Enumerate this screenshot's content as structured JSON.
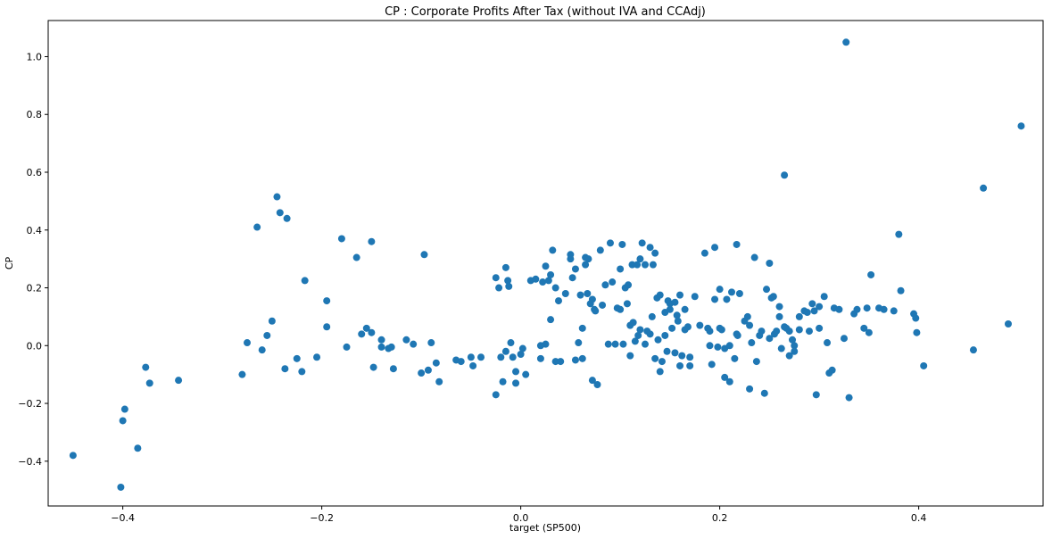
{
  "chart_data": {
    "type": "scatter",
    "title": "CP :  Corporate Profits After Tax (without IVA and CCAdj)",
    "xlabel": "target (SP500)",
    "ylabel": "CP",
    "xlim": [
      -0.475,
      0.525
    ],
    "ylim": [
      -0.555,
      1.125
    ],
    "xticks": [
      -0.4,
      -0.2,
      0.0,
      0.2,
      0.4
    ],
    "yticks": [
      -0.4,
      -0.2,
      0.0,
      0.2,
      0.4,
      0.6,
      0.8,
      1.0
    ],
    "xtick_labels": [
      "−0.4",
      "−0.2",
      "0.0",
      "0.2",
      "0.4"
    ],
    "ytick_labels": [
      "−0.4",
      "−0.2",
      "0.0",
      "0.2",
      "0.4",
      "0.6",
      "0.8",
      "1.0"
    ],
    "grid": false,
    "marker_color": "#1f77b4",
    "points": [
      [
        -0.45,
        -0.38
      ],
      [
        -0.402,
        -0.49
      ],
      [
        -0.4,
        -0.26
      ],
      [
        -0.398,
        -0.22
      ],
      [
        -0.385,
        -0.355
      ],
      [
        -0.377,
        -0.075
      ],
      [
        -0.373,
        -0.13
      ],
      [
        -0.344,
        -0.12
      ],
      [
        -0.28,
        -0.1
      ],
      [
        -0.275,
        0.01
      ],
      [
        -0.265,
        0.41
      ],
      [
        -0.26,
        -0.015
      ],
      [
        -0.255,
        0.035
      ],
      [
        -0.25,
        0.085
      ],
      [
        -0.245,
        0.515
      ],
      [
        -0.242,
        0.46
      ],
      [
        -0.237,
        -0.08
      ],
      [
        -0.235,
        0.44
      ],
      [
        -0.225,
        -0.045
      ],
      [
        -0.22,
        -0.09
      ],
      [
        -0.217,
        0.225
      ],
      [
        -0.205,
        -0.04
      ],
      [
        -0.195,
        0.065
      ],
      [
        -0.195,
        0.155
      ],
      [
        -0.18,
        0.37
      ],
      [
        -0.175,
        -0.005
      ],
      [
        -0.165,
        0.305
      ],
      [
        -0.16,
        0.04
      ],
      [
        -0.155,
        0.06
      ],
      [
        -0.15,
        0.045
      ],
      [
        -0.15,
        0.36
      ],
      [
        -0.148,
        -0.075
      ],
      [
        -0.14,
        0.02
      ],
      [
        -0.14,
        -0.005
      ],
      [
        -0.133,
        -0.01
      ],
      [
        -0.13,
        -0.005
      ],
      [
        -0.128,
        -0.08
      ],
      [
        -0.115,
        0.02
      ],
      [
        -0.108,
        0.005
      ],
      [
        -0.1,
        -0.095
      ],
      [
        -0.097,
        0.315
      ],
      [
        -0.093,
        -0.085
      ],
      [
        -0.09,
        0.01
      ],
      [
        -0.085,
        -0.06
      ],
      [
        -0.082,
        -0.125
      ],
      [
        -0.065,
        -0.05
      ],
      [
        -0.06,
        -0.055
      ],
      [
        -0.05,
        -0.04
      ],
      [
        -0.048,
        -0.07
      ],
      [
        -0.04,
        -0.04
      ],
      [
        -0.025,
        -0.17
      ],
      [
        -0.025,
        0.235
      ],
      [
        -0.022,
        0.2
      ],
      [
        -0.02,
        -0.04
      ],
      [
        -0.018,
        -0.125
      ],
      [
        -0.015,
        -0.02
      ],
      [
        -0.015,
        0.27
      ],
      [
        -0.013,
        0.225
      ],
      [
        -0.012,
        0.205
      ],
      [
        -0.01,
        0.01
      ],
      [
        -0.008,
        -0.04
      ],
      [
        -0.005,
        -0.13
      ],
      [
        -0.005,
        -0.09
      ],
      [
        0.0,
        -0.03
      ],
      [
        0.002,
        -0.01
      ],
      [
        0.005,
        -0.1
      ],
      [
        0.01,
        0.225
      ],
      [
        0.015,
        0.23
      ],
      [
        0.02,
        0.0
      ],
      [
        0.02,
        -0.045
      ],
      [
        0.022,
        0.22
      ],
      [
        0.025,
        0.275
      ],
      [
        0.025,
        0.005
      ],
      [
        0.028,
        0.225
      ],
      [
        0.03,
        0.245
      ],
      [
        0.03,
        0.09
      ],
      [
        0.032,
        0.33
      ],
      [
        0.035,
        0.2
      ],
      [
        0.035,
        -0.055
      ],
      [
        0.038,
        0.155
      ],
      [
        0.04,
        -0.055
      ],
      [
        0.045,
        0.18
      ],
      [
        0.05,
        0.3
      ],
      [
        0.05,
        0.315
      ],
      [
        0.052,
        0.235
      ],
      [
        0.055,
        -0.05
      ],
      [
        0.055,
        0.265
      ],
      [
        0.058,
        0.01
      ],
      [
        0.06,
        0.175
      ],
      [
        0.062,
        0.06
      ],
      [
        0.062,
        -0.045
      ],
      [
        0.065,
        0.28
      ],
      [
        0.065,
        0.305
      ],
      [
        0.067,
        0.18
      ],
      [
        0.068,
        0.3
      ],
      [
        0.07,
        0.145
      ],
      [
        0.072,
        0.16
      ],
      [
        0.072,
        -0.12
      ],
      [
        0.074,
        0.125
      ],
      [
        0.075,
        0.12
      ],
      [
        0.077,
        -0.135
      ],
      [
        0.08,
        0.33
      ],
      [
        0.082,
        0.14
      ],
      [
        0.085,
        0.21
      ],
      [
        0.088,
        0.005
      ],
      [
        0.09,
        0.355
      ],
      [
        0.092,
        0.22
      ],
      [
        0.095,
        0.005
      ],
      [
        0.097,
        0.13
      ],
      [
        0.1,
        0.265
      ],
      [
        0.1,
        0.125
      ],
      [
        0.102,
        0.35
      ],
      [
        0.103,
        0.005
      ],
      [
        0.105,
        0.2
      ],
      [
        0.107,
        0.145
      ],
      [
        0.108,
        0.21
      ],
      [
        0.11,
        -0.035
      ],
      [
        0.11,
        0.07
      ],
      [
        0.112,
        0.28
      ],
      [
        0.113,
        0.08
      ],
      [
        0.115,
        0.015
      ],
      [
        0.117,
        0.28
      ],
      [
        0.118,
        0.035
      ],
      [
        0.12,
        0.3
      ],
      [
        0.12,
        0.055
      ],
      [
        0.122,
        0.355
      ],
      [
        0.125,
        0.005
      ],
      [
        0.125,
        0.28
      ],
      [
        0.127,
        0.05
      ],
      [
        0.13,
        0.34
      ],
      [
        0.13,
        0.04
      ],
      [
        0.132,
        0.1
      ],
      [
        0.133,
        0.28
      ],
      [
        0.135,
        0.32
      ],
      [
        0.135,
        -0.045
      ],
      [
        0.137,
        0.165
      ],
      [
        0.138,
        0.02
      ],
      [
        0.14,
        -0.09
      ],
      [
        0.14,
        0.175
      ],
      [
        0.142,
        -0.055
      ],
      [
        0.145,
        0.115
      ],
      [
        0.145,
        0.035
      ],
      [
        0.147,
        -0.02
      ],
      [
        0.148,
        0.155
      ],
      [
        0.15,
        0.145
      ],
      [
        0.15,
        0.125
      ],
      [
        0.152,
        0.06
      ],
      [
        0.155,
        -0.025
      ],
      [
        0.155,
        0.15
      ],
      [
        0.157,
        0.105
      ],
      [
        0.158,
        0.085
      ],
      [
        0.16,
        -0.07
      ],
      [
        0.16,
        0.175
      ],
      [
        0.162,
        -0.035
      ],
      [
        0.165,
        0.125
      ],
      [
        0.165,
        0.055
      ],
      [
        0.168,
        0.065
      ],
      [
        0.17,
        -0.04
      ],
      [
        0.17,
        -0.07
      ],
      [
        0.175,
        0.17
      ],
      [
        0.18,
        0.07
      ],
      [
        0.185,
        0.32
      ],
      [
        0.188,
        0.06
      ],
      [
        0.19,
        0.05
      ],
      [
        0.19,
        0.0
      ],
      [
        0.192,
        -0.065
      ],
      [
        0.195,
        0.16
      ],
      [
        0.195,
        0.34
      ],
      [
        0.198,
        -0.005
      ],
      [
        0.2,
        0.06
      ],
      [
        0.2,
        0.195
      ],
      [
        0.202,
        0.055
      ],
      [
        0.205,
        -0.01
      ],
      [
        0.205,
        -0.11
      ],
      [
        0.207,
        0.16
      ],
      [
        0.21,
        0.0
      ],
      [
        0.21,
        -0.125
      ],
      [
        0.212,
        0.185
      ],
      [
        0.215,
        -0.045
      ],
      [
        0.217,
        0.04
      ],
      [
        0.217,
        0.35
      ],
      [
        0.218,
        0.035
      ],
      [
        0.22,
        0.18
      ],
      [
        0.225,
        0.085
      ],
      [
        0.228,
        0.1
      ],
      [
        0.23,
        0.07
      ],
      [
        0.23,
        -0.15
      ],
      [
        0.232,
        0.01
      ],
      [
        0.235,
        0.305
      ],
      [
        0.237,
        -0.055
      ],
      [
        0.24,
        0.035
      ],
      [
        0.242,
        0.05
      ],
      [
        0.245,
        -0.165
      ],
      [
        0.247,
        0.195
      ],
      [
        0.25,
        0.285
      ],
      [
        0.25,
        0.025
      ],
      [
        0.252,
        0.165
      ],
      [
        0.254,
        0.17
      ],
      [
        0.255,
        0.04
      ],
      [
        0.257,
        0.05
      ],
      [
        0.26,
        0.135
      ],
      [
        0.26,
        0.1
      ],
      [
        0.262,
        -0.01
      ],
      [
        0.265,
        0.065
      ],
      [
        0.265,
        0.59
      ],
      [
        0.267,
        0.06
      ],
      [
        0.27,
        -0.035
      ],
      [
        0.27,
        0.05
      ],
      [
        0.273,
        0.02
      ],
      [
        0.275,
        0.0
      ],
      [
        0.275,
        -0.02
      ],
      [
        0.28,
        0.1
      ],
      [
        0.28,
        0.055
      ],
      [
        0.285,
        0.12
      ],
      [
        0.288,
        0.115
      ],
      [
        0.29,
        0.05
      ],
      [
        0.293,
        0.145
      ],
      [
        0.295,
        0.12
      ],
      [
        0.297,
        -0.17
      ],
      [
        0.3,
        0.135
      ],
      [
        0.3,
        0.06
      ],
      [
        0.305,
        0.17
      ],
      [
        0.308,
        0.01
      ],
      [
        0.31,
        -0.095
      ],
      [
        0.313,
        -0.085
      ],
      [
        0.315,
        0.13
      ],
      [
        0.32,
        0.125
      ],
      [
        0.325,
        0.025
      ],
      [
        0.327,
        1.05
      ],
      [
        0.33,
        -0.18
      ],
      [
        0.335,
        0.11
      ],
      [
        0.338,
        0.125
      ],
      [
        0.345,
        0.06
      ],
      [
        0.348,
        0.13
      ],
      [
        0.35,
        0.045
      ],
      [
        0.352,
        0.245
      ],
      [
        0.36,
        0.13
      ],
      [
        0.365,
        0.125
      ],
      [
        0.375,
        0.12
      ],
      [
        0.38,
        0.385
      ],
      [
        0.382,
        0.19
      ],
      [
        0.395,
        0.11
      ],
      [
        0.397,
        0.095
      ],
      [
        0.398,
        0.045
      ],
      [
        0.405,
        -0.07
      ],
      [
        0.455,
        -0.015
      ],
      [
        0.465,
        0.545
      ],
      [
        0.49,
        0.075
      ],
      [
        0.503,
        0.76
      ]
    ]
  }
}
